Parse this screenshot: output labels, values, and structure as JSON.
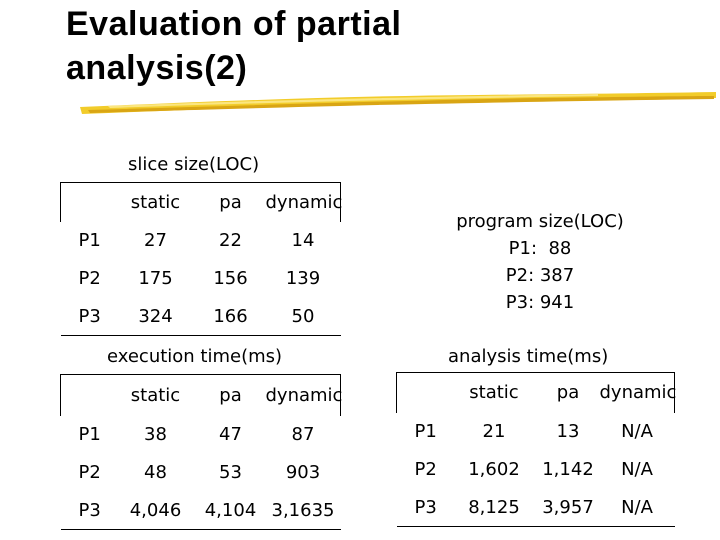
{
  "title": {
    "line1": "Evaluation of partial",
    "line2": "analysis(2)"
  },
  "slice": {
    "caption": "slice size(LOC)",
    "headers": [
      "",
      "static",
      "pa",
      "dynamic"
    ],
    "rows": [
      [
        "P1",
        "27",
        "22",
        "14"
      ],
      [
        "P2",
        "175",
        "156",
        "139"
      ],
      [
        "P3",
        "324",
        "166",
        "50"
      ]
    ]
  },
  "program": {
    "caption": "program size(LOC)",
    "lines": [
      "P1:  88",
      "P2: 387",
      "P3: 941"
    ]
  },
  "execution": {
    "caption": "execution time(ms)",
    "headers": [
      "",
      "static",
      "pa",
      "dynamic"
    ],
    "rows": [
      [
        "P1",
        "38",
        "47",
        "87"
      ],
      [
        "P2",
        "48",
        "53",
        "903"
      ],
      [
        "P3",
        "4,046",
        "4,104",
        "3,1635"
      ]
    ]
  },
  "analysis": {
    "caption": "analysis time(ms)",
    "headers": [
      "",
      "static",
      "pa",
      "dynamic"
    ],
    "rows": [
      [
        "P1",
        "21",
        "13",
        "N/A"
      ],
      [
        "P2",
        "1,602",
        "1,142",
        "N/A"
      ],
      [
        "P3",
        "8,125",
        "3,957",
        "N/A"
      ]
    ]
  },
  "colors": {
    "underline": "#f2cc2a",
    "underline_dark": "#d9a514"
  }
}
